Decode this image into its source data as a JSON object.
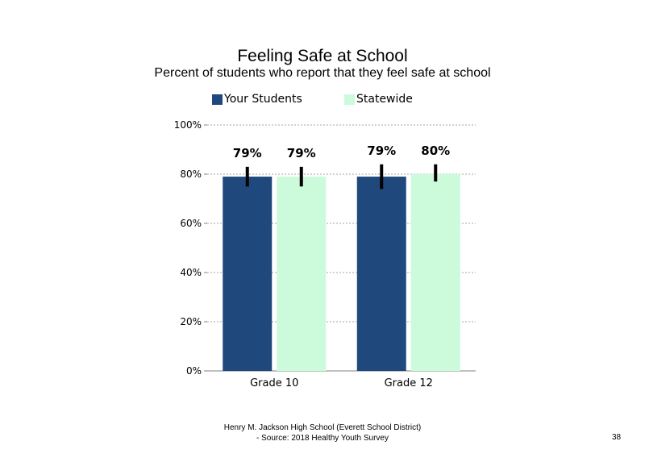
{
  "chart_data": {
    "type": "bar",
    "title": "Feeling  Safe at School",
    "subtitle": "Percent of students who report that they feel safe at school",
    "categories": [
      "Grade 10",
      "Grade 12"
    ],
    "series": [
      {
        "name": "Your Students",
        "color": "#1F497D",
        "values": [
          79,
          79
        ],
        "labels": [
          "79%",
          "79%"
        ],
        "error": [
          [
            75,
            83
          ],
          [
            74,
            84
          ]
        ]
      },
      {
        "name": "Statewide",
        "color": "#CCFBDC",
        "values": [
          79,
          80
        ],
        "labels": [
          "79%",
          "80%"
        ],
        "error": [
          [
            75,
            83
          ],
          [
            77,
            84
          ]
        ]
      }
    ],
    "ylim": [
      0,
      100
    ],
    "yticks": [
      0,
      20,
      40,
      60,
      80,
      100
    ],
    "ytick_labels": [
      "0%",
      "20%",
      "40%",
      "60%",
      "80%",
      "100%"
    ],
    "grid": true,
    "legend_position": "top"
  },
  "footer": {
    "line1": "Henry M.  Jackson High  School (Everett School District)",
    "line2": "- Source: 2018 Healthy  Youth Survey"
  },
  "page_number": "38"
}
